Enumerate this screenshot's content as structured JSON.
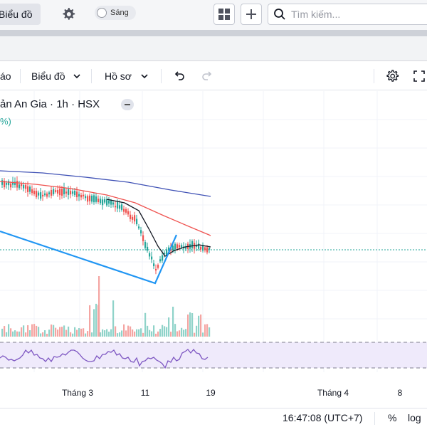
{
  "topbar": {
    "active_tab_label": "Biểu đồ",
    "theme_toggle_label": "Sáng",
    "search_placeholder": "Tìm kiếm..."
  },
  "toolbar": {
    "partial_label": "áo",
    "chart_menu_label": "Biểu đồ",
    "profile_menu_label": "Hồ sơ"
  },
  "legend": {
    "symbol_title": "ản An Gia · 1h · HSX",
    "change_pct": "%)"
  },
  "chart_data": {
    "type": "candlestick",
    "x_tick_labels": [
      "Tháng 3",
      "11",
      "19",
      "Tháng 4",
      "8"
    ],
    "overlays": [
      "moving-average-black",
      "moving-average-red",
      "moving-average-blue",
      "trend-line-blue"
    ],
    "panes": [
      "price",
      "volume",
      "oscillator"
    ],
    "oscillator_band": "shaded-purple",
    "colors": {
      "up": "#26a69a",
      "down": "#ef5350",
      "ma_short": "#131722",
      "ma_mid": "#ef5350",
      "ma_long": "#3f51b5",
      "trend_line": "#2196f3",
      "oscillator": "#7e57c2",
      "oscillator_fill": "#efeafb"
    }
  },
  "statusbar": {
    "time": "16:47:08 (UTC+7)",
    "percent_label": "%",
    "log_label": "log"
  }
}
